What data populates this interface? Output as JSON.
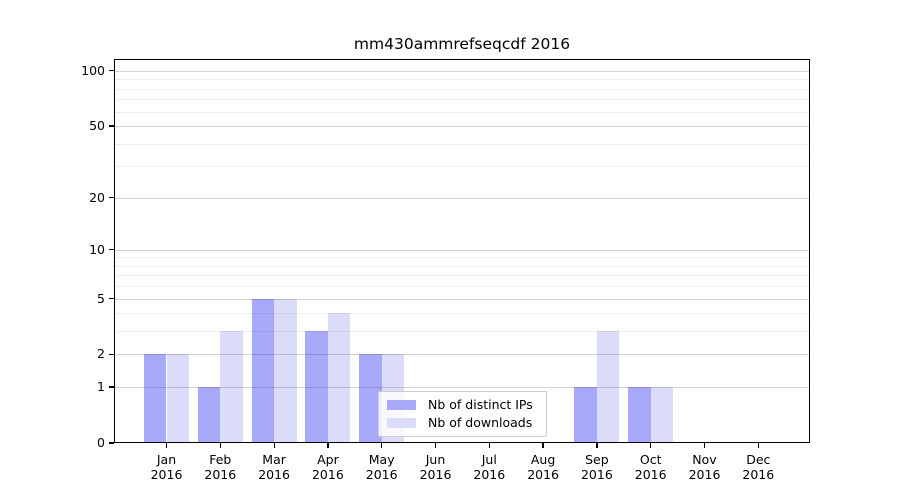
{
  "chart_data": {
    "type": "bar",
    "title": "mm430ammrefseqcdf 2016",
    "categories": [
      "Jan",
      "Feb",
      "Mar",
      "Apr",
      "May",
      "Jun",
      "Jul",
      "Aug",
      "Sep",
      "Oct",
      "Nov",
      "Dec"
    ],
    "x_year": "2016",
    "series": [
      {
        "name": "Nb of distinct IPs",
        "color": "#a9a9f9",
        "values": [
          2,
          1,
          5,
          3,
          2,
          0,
          0,
          0,
          1,
          1,
          0,
          0
        ]
      },
      {
        "name": "Nb of downloads",
        "color": "#dbdbfa",
        "values": [
          2,
          3,
          5,
          4,
          2,
          0,
          0,
          0,
          3,
          1,
          0,
          0
        ]
      }
    ],
    "y_axis": {
      "scale": "log1p",
      "ticks": [
        0,
        1,
        2,
        5,
        10,
        20,
        50,
        100
      ],
      "minor_ticks": [
        3,
        4,
        6,
        7,
        8,
        9,
        30,
        40,
        60,
        70,
        80,
        90
      ],
      "top_value": 116
    },
    "legend_position": "lower center-left",
    "grid": true,
    "bar_colors": {
      "distinct_ips": "#a9a9f9",
      "downloads": "#dbdbfa"
    }
  }
}
